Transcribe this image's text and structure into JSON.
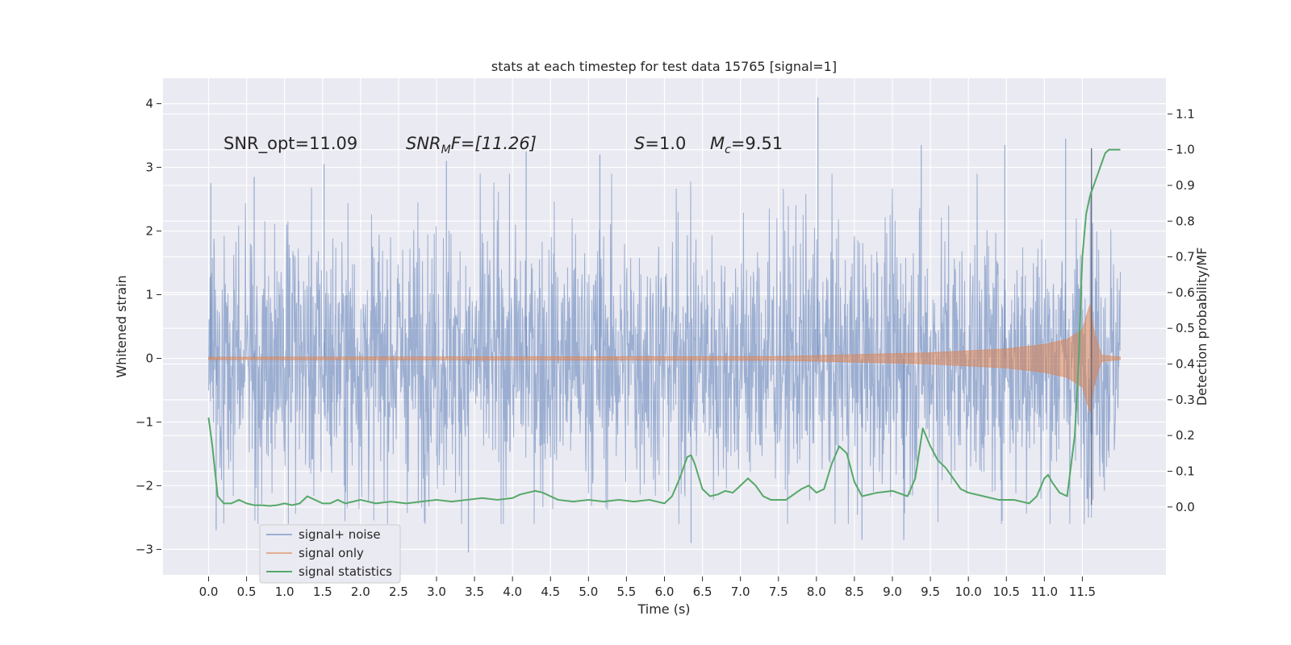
{
  "chart_data": {
    "type": "line",
    "title": "stats at each timestep for test data 15765 [signal=1]",
    "xlabel": "Time (s)",
    "ylabel": "Whitened strain",
    "ylabel_right": "Detection probability/MF",
    "xlim": [
      -0.6,
      12.6
    ],
    "ylim": [
      -3.4,
      4.4
    ],
    "ylim_right": [
      -0.19,
      1.2
    ],
    "grid": true,
    "x_ticks": [
      "0.0",
      "0.5",
      "1.0",
      "1.5",
      "2.0",
      "2.5",
      "3.0",
      "3.5",
      "4.0",
      "4.5",
      "5.0",
      "5.5",
      "6.0",
      "6.5",
      "7.0",
      "7.5",
      "8.0",
      "8.5",
      "9.0",
      "9.5",
      "10.0",
      "10.5",
      "11.0",
      "11.5"
    ],
    "y_ticks": [
      "4",
      "3",
      "2",
      "1",
      "0",
      "−1",
      "−2",
      "−3"
    ],
    "y_right_ticks": [
      "1.1",
      "1.0",
      "0.9",
      "0.8",
      "0.7",
      "0.6",
      "0.5",
      "0.4",
      "0.3",
      "0.2",
      "0.1",
      "0.0"
    ],
    "annotations": {
      "snr_opt": "SNR_opt=11.09",
      "snr_mf_sym": "SNR",
      "snr_mf_sub": "M",
      "snr_mf_rest": "F=[11.26]",
      "s_sym": "S",
      "s_val": "=1.0",
      "mc_sym": "M",
      "mc_sub": "c",
      "mc_val": "=9.51"
    },
    "legend_position": "lower-left",
    "series": [
      {
        "name": "signal+ noise",
        "color": "#4c72b0",
        "kind": "noise",
        "x_range": [
          0.0,
          12.0
        ],
        "envelope_typical": 1.7,
        "peaks": [
          {
            "x": 0.03,
            "y": 2.75
          },
          {
            "x": 0.6,
            "y": 2.85
          },
          {
            "x": 1.52,
            "y": 3.05
          },
          {
            "x": 3.13,
            "y": 3.1
          },
          {
            "x": 4.18,
            "y": 3.25
          },
          {
            "x": 5.15,
            "y": 3.2
          },
          {
            "x": 8.02,
            "y": 4.1
          },
          {
            "x": 9.38,
            "y": 3.35
          },
          {
            "x": 10.48,
            "y": 3.35
          },
          {
            "x": 11.28,
            "y": 3.45
          },
          {
            "x": 11.62,
            "y": 3.3
          },
          {
            "x": 0.1,
            "y": -2.7
          },
          {
            "x": 3.42,
            "y": -3.05
          },
          {
            "x": 6.35,
            "y": -2.9
          },
          {
            "x": 8.6,
            "y": -2.85
          },
          {
            "x": 9.15,
            "y": -2.85
          },
          {
            "x": 11.58,
            "y": -2.5
          }
        ]
      },
      {
        "name": "signal only",
        "color": "#dd8452",
        "kind": "chirp",
        "x_range": [
          0.0,
          12.0
        ],
        "amplitude": [
          {
            "x": 0.0,
            "y": 0.02
          },
          {
            "x": 7.5,
            "y": 0.03
          },
          {
            "x": 8.5,
            "y": 0.06
          },
          {
            "x": 9.5,
            "y": 0.09
          },
          {
            "x": 10.5,
            "y": 0.15
          },
          {
            "x": 11.0,
            "y": 0.22
          },
          {
            "x": 11.3,
            "y": 0.3
          },
          {
            "x": 11.5,
            "y": 0.45
          },
          {
            "x": 11.6,
            "y": 0.85
          },
          {
            "x": 11.65,
            "y": 0.45
          },
          {
            "x": 11.75,
            "y": 0.05
          },
          {
            "x": 12.0,
            "y": 0.02
          }
        ]
      },
      {
        "name": "signal statistics",
        "color": "#55a868",
        "axis": "right",
        "kind": "line",
        "x": [
          0.0,
          0.05,
          0.12,
          0.2,
          0.3,
          0.4,
          0.5,
          0.6,
          0.7,
          0.8,
          0.9,
          1.0,
          1.1,
          1.2,
          1.3,
          1.4,
          1.5,
          1.6,
          1.7,
          1.8,
          1.9,
          2.0,
          2.2,
          2.4,
          2.6,
          2.8,
          3.0,
          3.2,
          3.4,
          3.6,
          3.8,
          4.0,
          4.1,
          4.2,
          4.3,
          4.4,
          4.5,
          4.6,
          4.8,
          5.0,
          5.2,
          5.4,
          5.6,
          5.8,
          6.0,
          6.1,
          6.2,
          6.3,
          6.35,
          6.4,
          6.5,
          6.6,
          6.7,
          6.8,
          6.9,
          7.0,
          7.1,
          7.2,
          7.3,
          7.4,
          7.6,
          7.8,
          7.9,
          8.0,
          8.1,
          8.2,
          8.3,
          8.4,
          8.5,
          8.6,
          8.8,
          9.0,
          9.2,
          9.3,
          9.4,
          9.5,
          9.6,
          9.7,
          9.8,
          9.9,
          10.0,
          10.2,
          10.4,
          10.6,
          10.8,
          10.9,
          11.0,
          11.05,
          11.1,
          11.2,
          11.3,
          11.4,
          11.45,
          11.5,
          11.55,
          11.6,
          11.65,
          11.7,
          11.75,
          11.8,
          11.85,
          11.9,
          12.0
        ],
        "y": [
          0.25,
          0.17,
          0.03,
          0.01,
          0.01,
          0.02,
          0.01,
          0.005,
          0.005,
          0.003,
          0.005,
          0.01,
          0.005,
          0.01,
          0.03,
          0.02,
          0.01,
          0.01,
          0.02,
          0.01,
          0.015,
          0.02,
          0.01,
          0.015,
          0.01,
          0.015,
          0.02,
          0.015,
          0.02,
          0.025,
          0.02,
          0.025,
          0.035,
          0.04,
          0.045,
          0.04,
          0.03,
          0.02,
          0.015,
          0.02,
          0.015,
          0.02,
          0.015,
          0.02,
          0.01,
          0.03,
          0.08,
          0.14,
          0.145,
          0.12,
          0.05,
          0.03,
          0.035,
          0.045,
          0.04,
          0.06,
          0.08,
          0.06,
          0.03,
          0.02,
          0.02,
          0.05,
          0.06,
          0.04,
          0.05,
          0.12,
          0.17,
          0.15,
          0.07,
          0.03,
          0.04,
          0.045,
          0.03,
          0.08,
          0.22,
          0.17,
          0.13,
          0.11,
          0.08,
          0.05,
          0.04,
          0.03,
          0.02,
          0.02,
          0.01,
          0.03,
          0.08,
          0.09,
          0.07,
          0.04,
          0.03,
          0.2,
          0.4,
          0.7,
          0.82,
          0.87,
          0.9,
          0.93,
          0.96,
          0.99,
          1.0,
          1.0,
          1.0
        ]
      }
    ]
  }
}
